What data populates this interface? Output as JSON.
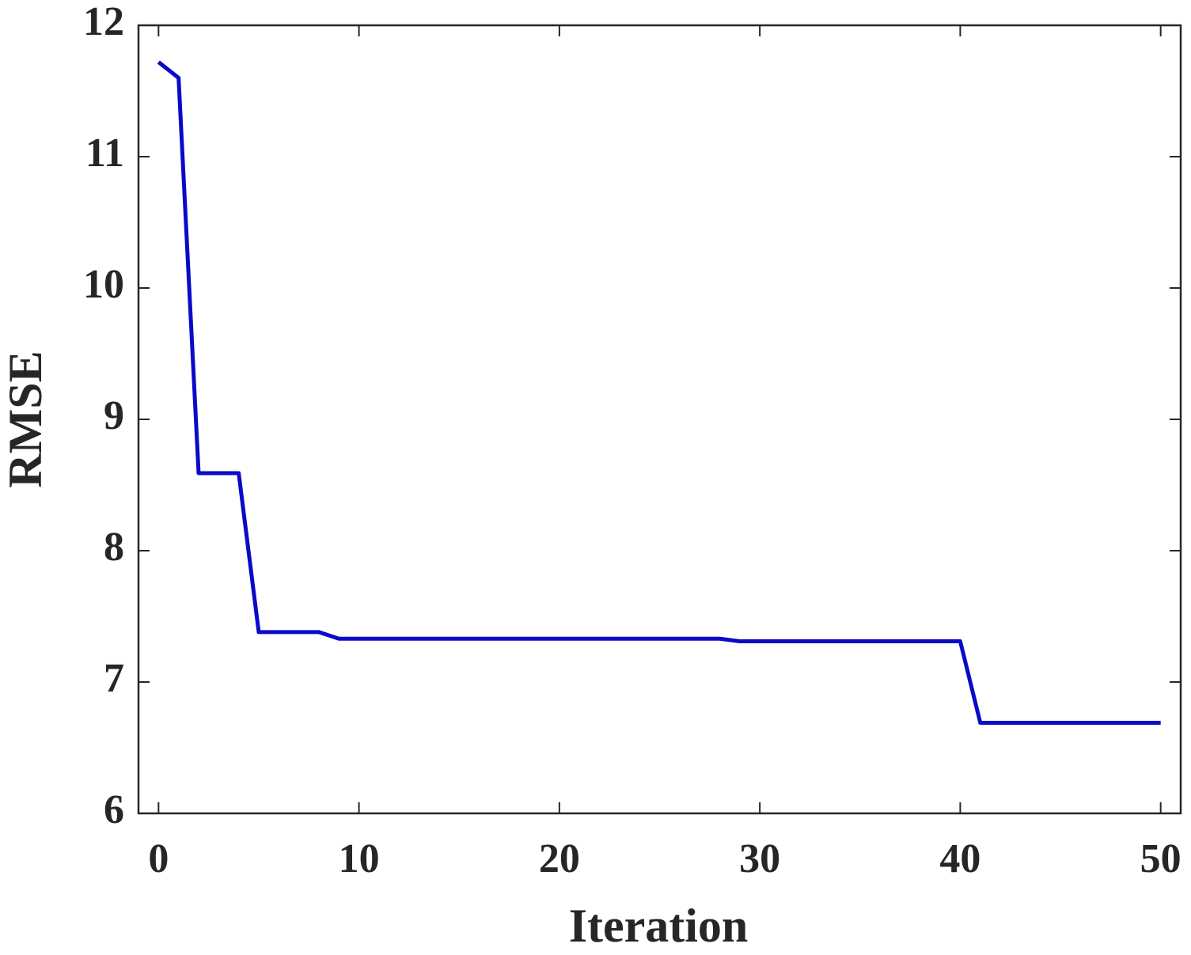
{
  "chart_data": {
    "type": "line",
    "xlabel": "Iteration",
    "ylabel": "RMSE",
    "x": [
      0,
      1,
      2,
      3,
      4,
      5,
      6,
      7,
      8,
      9,
      10,
      11,
      12,
      13,
      14,
      15,
      16,
      17,
      18,
      19,
      20,
      21,
      22,
      23,
      24,
      25,
      26,
      27,
      28,
      29,
      30,
      31,
      32,
      33,
      34,
      35,
      36,
      37,
      38,
      39,
      40,
      41,
      42,
      43,
      44,
      45,
      46,
      47,
      48,
      49,
      50
    ],
    "series": [
      {
        "color": "#0a0ac8",
        "values": [
          11.72,
          11.6,
          8.59,
          8.59,
          8.59,
          7.38,
          7.38,
          7.38,
          7.38,
          7.33,
          7.33,
          7.33,
          7.33,
          7.33,
          7.33,
          7.33,
          7.33,
          7.33,
          7.33,
          7.33,
          7.33,
          7.33,
          7.33,
          7.33,
          7.33,
          7.33,
          7.33,
          7.33,
          7.33,
          7.31,
          7.31,
          7.31,
          7.31,
          7.31,
          7.31,
          7.31,
          7.31,
          7.31,
          7.31,
          7.31,
          7.31,
          6.69,
          6.69,
          6.69,
          6.69,
          6.69,
          6.69,
          6.69,
          6.69,
          6.69,
          6.69
        ]
      }
    ],
    "xlim": [
      -1,
      51
    ],
    "xticks": [
      0,
      10,
      20,
      30,
      40,
      50
    ],
    "ylim": [
      6,
      12
    ],
    "yticks": [
      6,
      7,
      8,
      9,
      10,
      11,
      12
    ],
    "grid": false
  }
}
